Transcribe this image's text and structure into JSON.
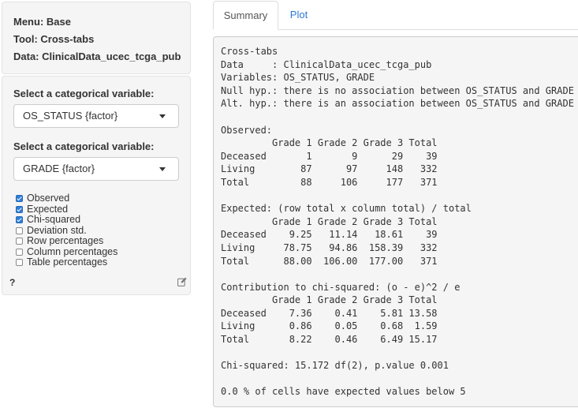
{
  "info": {
    "menu": "Menu: Base",
    "tool": "Tool: Cross-tabs",
    "data": "Data: ClinicalData_ucec_tcga_pub"
  },
  "controls": {
    "var1_label": "Select a categorical variable:",
    "var1_value": "OS_STATUS {factor}",
    "var2_label": "Select a categorical variable:",
    "var2_value": "GRADE {factor}",
    "checkboxes": [
      {
        "label": "Observed",
        "checked": true
      },
      {
        "label": "Expected",
        "checked": true
      },
      {
        "label": "Chi-squared",
        "checked": true
      },
      {
        "label": "Deviation std.",
        "checked": false
      },
      {
        "label": "Row percentages",
        "checked": false
      },
      {
        "label": "Column percentages",
        "checked": false
      },
      {
        "label": "Table percentages",
        "checked": false
      }
    ],
    "help": "?"
  },
  "tabs": {
    "summary": "Summary",
    "plot": "Plot"
  },
  "output": {
    "lines": [
      "Cross-tabs",
      "Data     : ClinicalData_ucec_tcga_pub",
      "Variables: OS_STATUS, GRADE",
      "Null hyp.: there is no association between OS_STATUS and GRADE",
      "Alt. hyp.: there is an association between OS_STATUS and GRADE",
      "",
      "Observed:",
      "         Grade 1 Grade 2 Grade 3 Total",
      "Deceased       1       9      29    39",
      "Living        87      97     148   332",
      "Total         88     106     177   371",
      "",
      "Expected: (row total x column total) / total",
      "         Grade 1 Grade 2 Grade 3 Total",
      "Deceased    9.25   11.14   18.61    39",
      "Living     78.75   94.86  158.39   332",
      "Total      88.00  106.00  177.00   371",
      "",
      "Contribution to chi-squared: (o - e)^2 / e",
      "         Grade 1 Grade 2 Grade 3 Total",
      "Deceased    7.36    0.41    5.81 13.58",
      "Living      0.86    0.05    0.68  1.59",
      "Total       8.22    0.46    6.49 15.17",
      "",
      "Chi-squared: 15.172 df(2), p.value 0.001",
      "",
      "0.0 % of cells have expected values below 5"
    ]
  },
  "colors": {
    "accent": "#2a7ad5",
    "checkbox_checked": "#2f7fd8",
    "panel_bg": "#f5f5f5"
  },
  "icons": {
    "caret": "chevron-down-icon",
    "edit": "edit-icon"
  }
}
